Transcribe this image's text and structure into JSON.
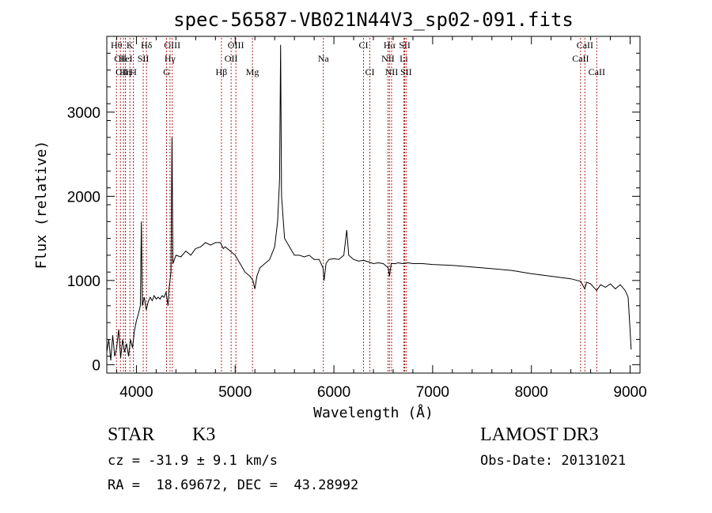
{
  "chart_data": {
    "type": "line",
    "title": "spec-56587-VB021N44V3_sp02-091.fits",
    "xlabel": "Wavelength (Å)",
    "ylabel": "Flux (relative)",
    "xlim": [
      3700,
      9100
    ],
    "ylim": [
      -100,
      3900
    ],
    "xticks": [
      4000,
      5000,
      6000,
      7000,
      8000,
      9000
    ],
    "yticks": [
      0,
      1000,
      2000,
      3000
    ],
    "grid": false,
    "series": [
      {
        "points": [
          [
            3700,
            150
          ],
          [
            3720,
            300
          ],
          [
            3740,
            50
          ],
          [
            3760,
            350
          ],
          [
            3780,
            100
          ],
          [
            3800,
            200
          ],
          [
            3820,
            420
          ],
          [
            3840,
            80
          ],
          [
            3860,
            300
          ],
          [
            3880,
            150
          ],
          [
            3900,
            250
          ],
          [
            3920,
            100
          ],
          [
            3940,
            300
          ],
          [
            3960,
            200
          ],
          [
            3980,
            400
          ],
          [
            4000,
            520
          ],
          [
            4020,
            600
          ],
          [
            4040,
            700
          ],
          [
            4050,
            1700
          ],
          [
            4060,
            700
          ],
          [
            4080,
            800
          ],
          [
            4100,
            650
          ],
          [
            4120,
            750
          ],
          [
            4140,
            800
          ],
          [
            4160,
            760
          ],
          [
            4180,
            820
          ],
          [
            4200,
            780
          ],
          [
            4220,
            800
          ],
          [
            4240,
            780
          ],
          [
            4260,
            820
          ],
          [
            4280,
            800
          ],
          [
            4300,
            860
          ],
          [
            4320,
            700
          ],
          [
            4330,
            900
          ],
          [
            4340,
            1000
          ],
          [
            4350,
            1100
          ],
          [
            4360,
            2700
          ],
          [
            4370,
            1200
          ],
          [
            4400,
            1300
          ],
          [
            4450,
            1280
          ],
          [
            4500,
            1350
          ],
          [
            4550,
            1300
          ],
          [
            4600,
            1380
          ],
          [
            4650,
            1400
          ],
          [
            4700,
            1450
          ],
          [
            4750,
            1420
          ],
          [
            4800,
            1450
          ],
          [
            4850,
            1450
          ],
          [
            4880,
            1380
          ],
          [
            4900,
            1400
          ],
          [
            4950,
            1350
          ],
          [
            5000,
            1300
          ],
          [
            5050,
            1200
          ],
          [
            5100,
            1100
          ],
          [
            5150,
            1050
          ],
          [
            5180,
            1000
          ],
          [
            5200,
            900
          ],
          [
            5220,
            1050
          ],
          [
            5250,
            1150
          ],
          [
            5300,
            1200
          ],
          [
            5350,
            1250
          ],
          [
            5400,
            1400
          ],
          [
            5430,
            1700
          ],
          [
            5450,
            2200
          ],
          [
            5460,
            3800
          ],
          [
            5470,
            2000
          ],
          [
            5500,
            1500
          ],
          [
            5550,
            1400
          ],
          [
            5600,
            1300
          ],
          [
            5650,
            1300
          ],
          [
            5700,
            1280
          ],
          [
            5750,
            1300
          ],
          [
            5800,
            1250
          ],
          [
            5850,
            1250
          ],
          [
            5890,
            1150
          ],
          [
            5900,
            1000
          ],
          [
            5920,
            1200
          ],
          [
            5950,
            1250
          ],
          [
            6000,
            1260
          ],
          [
            6050,
            1250
          ],
          [
            6100,
            1300
          ],
          [
            6130,
            1600
          ],
          [
            6150,
            1300
          ],
          [
            6200,
            1250
          ],
          [
            6250,
            1230
          ],
          [
            6300,
            1240
          ],
          [
            6350,
            1220
          ],
          [
            6400,
            1200
          ],
          [
            6450,
            1210
          ],
          [
            6500,
            1200
          ],
          [
            6550,
            1150
          ],
          [
            6563,
            1050
          ],
          [
            6580,
            1200
          ],
          [
            6620,
            1200
          ],
          [
            6650,
            1210
          ],
          [
            6700,
            1200
          ],
          [
            6750,
            1210
          ],
          [
            6800,
            1200
          ],
          [
            6900,
            1200
          ],
          [
            7000,
            1190
          ],
          [
            7200,
            1180
          ],
          [
            7400,
            1160
          ],
          [
            7600,
            1140
          ],
          [
            7800,
            1120
          ],
          [
            8000,
            1080
          ],
          [
            8200,
            1050
          ],
          [
            8400,
            1020
          ],
          [
            8500,
            990
          ],
          [
            8540,
            900
          ],
          [
            8560,
            980
          ],
          [
            8600,
            960
          ],
          [
            8660,
            880
          ],
          [
            8700,
            950
          ],
          [
            8750,
            920
          ],
          [
            8800,
            960
          ],
          [
            8850,
            900
          ],
          [
            8900,
            950
          ],
          [
            8950,
            880
          ],
          [
            8980,
            800
          ],
          [
            9000,
            400
          ],
          [
            9010,
            180
          ]
        ]
      }
    ],
    "lines": [
      {
        "label": "Hθ",
        "x": 3798,
        "row": 0
      },
      {
        "label": "CII",
        "x": 3838,
        "row": 1
      },
      {
        "label": "CIII",
        "x": 3869,
        "row": 2
      },
      {
        "label": "HeI",
        "x": 3889,
        "row": 1
      },
      {
        "label": "Hη",
        "x": 3889,
        "row": 2
      },
      {
        "label": "K",
        "x": 3934,
        "row": 0
      },
      {
        "label": "SII",
        "x": 4069,
        "row": 1
      },
      {
        "label": "H",
        "x": 3969,
        "row": 2
      },
      {
        "label": "Hδ",
        "x": 4102,
        "row": 0
      },
      {
        "label": "OIII",
        "x": 4363,
        "row": 0
      },
      {
        "label": "Hγ",
        "x": 4340,
        "row": 1
      },
      {
        "label": "G",
        "x": 4305,
        "row": 2
      },
      {
        "label": "Hβ",
        "x": 4861,
        "row": 2
      },
      {
        "label": "OIII",
        "x": 5007,
        "row": 0
      },
      {
        "label": "OII",
        "x": 4959,
        "row": 1
      },
      {
        "label": "Mg",
        "x": 5175,
        "row": 2
      },
      {
        "label": "Na",
        "x": 5893,
        "row": 1
      },
      {
        "label": "CI",
        "x": 6300,
        "row": 0
      },
      {
        "label": "CI",
        "x": 6364,
        "row": 2
      },
      {
        "label": "Hα",
        "x": 6563,
        "row": 0
      },
      {
        "label": "NII",
        "x": 6548,
        "row": 1
      },
      {
        "label": "NII",
        "x": 6584,
        "row": 2
      },
      {
        "label": "SII",
        "x": 6717,
        "row": 0
      },
      {
        "label": "Li",
        "x": 6708,
        "row": 1
      },
      {
        "label": "SII",
        "x": 6731,
        "row": 2
      },
      {
        "label": "CaII",
        "x": 8498,
        "row": 1
      },
      {
        "label": "CaII",
        "x": 8542,
        "row": 0
      },
      {
        "label": "CaII",
        "x": 8662,
        "row": 2
      }
    ]
  },
  "info": {
    "class": "STAR",
    "subclass": "K3",
    "cz": "cz = -31.9 ± 9.1 km/s",
    "radec": "RA =  18.69672, DEC =  43.28992",
    "survey": "LAMOST DR3",
    "obsdate": "Obs-Date: 20131021"
  },
  "colors": {
    "spectrum": "#000000",
    "lines": "#b22222"
  }
}
